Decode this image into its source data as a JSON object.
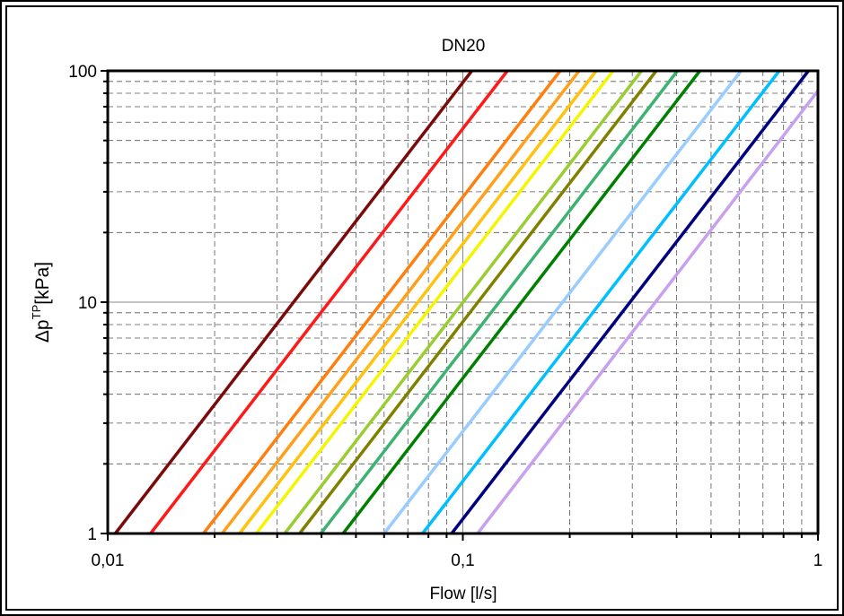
{
  "chart_data": {
    "type": "line",
    "title": "DN20",
    "xlabel": "Flow [l/s]",
    "ylabel_main": "Δp",
    "ylabel_sup": "TP",
    "ylabel_unit": "[kPa]",
    "x_scale": "log",
    "y_scale": "log",
    "xlim": [
      0.01,
      1
    ],
    "ylim": [
      1,
      100
    ],
    "x_ticks": [
      {
        "value": 0.01,
        "label": "0,01"
      },
      {
        "value": 0.1,
        "label": "0,1"
      },
      {
        "value": 1,
        "label": "1"
      }
    ],
    "y_ticks": [
      {
        "value": 1,
        "label": "1"
      },
      {
        "value": 10,
        "label": "10"
      },
      {
        "value": 100,
        "label": "100"
      }
    ],
    "grid": true,
    "legend": "none",
    "series": [
      {
        "color": "#7b0a0a",
        "x": [
          0.0105,
          0.106
        ],
        "y": [
          1,
          100
        ]
      },
      {
        "color": "#ff1a1a",
        "x": [
          0.0132,
          0.1335
        ],
        "y": [
          1,
          100
        ]
      },
      {
        "color": "#ff7f0e",
        "x": [
          0.0186,
          0.188
        ],
        "y": [
          1,
          100
        ]
      },
      {
        "color": "#ff9f1a",
        "x": [
          0.021,
          0.2125
        ],
        "y": [
          1,
          100
        ]
      },
      {
        "color": "#ffc20e",
        "x": [
          0.0235,
          0.2375
        ],
        "y": [
          1,
          100
        ]
      },
      {
        "color": "#f5f500",
        "x": [
          0.0262,
          0.265
        ],
        "y": [
          1,
          100
        ]
      },
      {
        "color": "#9acd32",
        "x": [
          0.0315,
          0.3185
        ],
        "y": [
          1,
          100
        ]
      },
      {
        "color": "#808000",
        "x": [
          0.0347,
          0.3505
        ],
        "y": [
          1,
          100
        ]
      },
      {
        "color": "#3cb371",
        "x": [
          0.0398,
          0.402
        ],
        "y": [
          1,
          100
        ]
      },
      {
        "color": "#008000",
        "x": [
          0.046,
          0.465
        ],
        "y": [
          1,
          100
        ]
      },
      {
        "color": "#99ccff",
        "x": [
          0.06,
          0.607
        ],
        "y": [
          1,
          100
        ]
      },
      {
        "color": "#00bfff",
        "x": [
          0.077,
          0.778
        ],
        "y": [
          1,
          100
        ]
      },
      {
        "color": "#000080",
        "x": [
          0.093,
          0.94
        ],
        "y": [
          1,
          100
        ]
      },
      {
        "color": "#c8a0f0",
        "x": [
          0.11,
          1.0
        ],
        "y": [
          1,
          82
        ]
      }
    ]
  }
}
